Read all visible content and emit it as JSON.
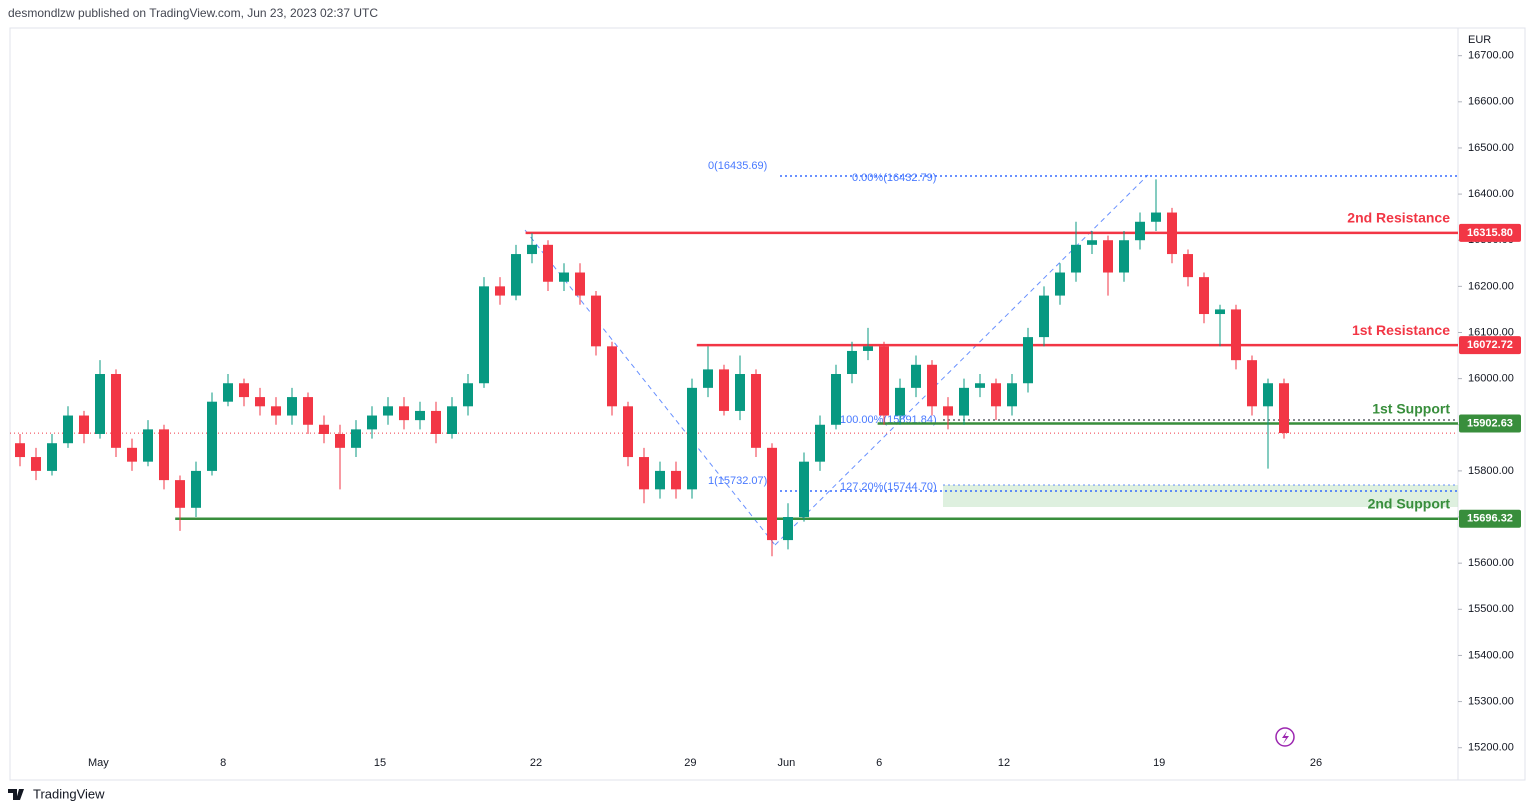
{
  "chart_data": {
    "type": "candlestick",
    "header": "desmondlzw published on TradingView.com, Jun 23, 2023 02:37 UTC",
    "currency": "EUR",
    "brand": "TradingView",
    "up_color": "#089981",
    "down_color": "#f23645",
    "open": [
      15860,
      15830,
      15800,
      15860,
      15920,
      15880,
      16010,
      15850,
      15820,
      15890,
      15780,
      15720,
      15800,
      15950,
      15990,
      15960,
      15940,
      15920,
      15960,
      15900,
      15880,
      15850,
      15890,
      15920,
      15940,
      15910,
      15930,
      15880,
      15940,
      15990,
      16200,
      16180,
      16270,
      16290,
      16210,
      16230,
      16180,
      16070,
      15940,
      15830,
      15760,
      15800,
      15760,
      15980,
      16020,
      15930,
      16010,
      15850,
      15650,
      15700,
      15820,
      15900,
      16010,
      16060,
      16070,
      15920,
      15980,
      16030,
      15940,
      15920,
      15980,
      15990,
      15940,
      15990,
      16090,
      16180,
      16230,
      16290,
      16300,
      16230,
      16300,
      16340,
      16360,
      16270,
      16220,
      16140,
      16150,
      16040,
      15940,
      15990
    ],
    "high": [
      15880,
      15850,
      15880,
      15940,
      15930,
      16040,
      16020,
      15870,
      15910,
      15900,
      15790,
      15820,
      15970,
      16010,
      16000,
      15980,
      15960,
      15980,
      15970,
      15920,
      15900,
      15910,
      15940,
      15960,
      15960,
      15950,
      15950,
      15960,
      16010,
      16220,
      16220,
      16290,
      16315,
      16300,
      16250,
      16250,
      16190,
      16080,
      15950,
      15850,
      15820,
      15820,
      16000,
      16070,
      16030,
      16050,
      16020,
      15860,
      15730,
      15840,
      15920,
      16030,
      16080,
      16110,
      16080,
      16000,
      16050,
      16040,
      15960,
      16000,
      16010,
      16000,
      16010,
      16110,
      16200,
      16250,
      16340,
      16320,
      16310,
      16320,
      16360,
      16432,
      16370,
      16280,
      16230,
      16160,
      16160,
      16050,
      16000,
      16000
    ],
    "low": [
      15810,
      15780,
      15790,
      15850,
      15860,
      15870,
      15830,
      15800,
      15810,
      15760,
      15670,
      15700,
      15790,
      15940,
      15940,
      15920,
      15900,
      15900,
      15880,
      15860,
      15760,
      15830,
      15870,
      15900,
      15890,
      15890,
      15860,
      15870,
      15920,
      15980,
      16160,
      16170,
      16250,
      16190,
      16190,
      16160,
      16050,
      15920,
      15810,
      15730,
      15740,
      15740,
      15740,
      15960,
      15920,
      15910,
      15830,
      15615,
      15630,
      15690,
      15800,
      15890,
      15990,
      16040,
      15900,
      15900,
      15960,
      15920,
      15890,
      15900,
      15960,
      15910,
      15920,
      15970,
      16070,
      16160,
      16210,
      16270,
      16180,
      16210,
      16280,
      16320,
      16250,
      16200,
      16120,
      16070,
      16020,
      15920,
      15805,
      15870
    ],
    "close": [
      15830,
      15800,
      15860,
      15920,
      15880,
      16010,
      15850,
      15820,
      15890,
      15780,
      15720,
      15800,
      15950,
      15990,
      15960,
      15940,
      15920,
      15960,
      15900,
      15880,
      15850,
      15890,
      15920,
      15940,
      15910,
      15930,
      15880,
      15940,
      15990,
      16200,
      16180,
      16270,
      16290,
      16210,
      16230,
      16180,
      16070,
      15940,
      15830,
      15760,
      15800,
      15760,
      15980,
      16020,
      15930,
      16010,
      15850,
      15650,
      15700,
      15820,
      15900,
      16010,
      16060,
      16070,
      15920,
      15980,
      16030,
      15940,
      15920,
      15980,
      15990,
      15940,
      15990,
      16090,
      16180,
      16230,
      16290,
      16300,
      16230,
      16300,
      16340,
      16360,
      16270,
      16220,
      16140,
      16150,
      16040,
      15940,
      15990,
      15882
    ],
    "xticks": [
      {
        "value": 4.9,
        "label": "May"
      },
      {
        "value": 12.7,
        "label": "8"
      },
      {
        "value": 22.5,
        "label": "15"
      },
      {
        "value": 32.25,
        "label": "22"
      },
      {
        "value": 41.9,
        "label": "29"
      },
      {
        "value": 47.9,
        "label": "Jun"
      },
      {
        "value": 53.7,
        "label": "6"
      },
      {
        "value": 61.5,
        "label": "12"
      },
      {
        "value": 71.2,
        "label": "19"
      },
      {
        "value": 81,
        "label": "26"
      }
    ],
    "ylim": [
      15130,
      16760
    ],
    "yticks": [
      {
        "value": 15200,
        "label": "15200.00"
      },
      {
        "value": 15300,
        "label": "15300.00"
      },
      {
        "value": 15400,
        "label": "15400.00"
      },
      {
        "value": 15500,
        "label": "15500.00"
      },
      {
        "value": 15600,
        "label": "15600.00"
      },
      {
        "value": 15700,
        "label": "15700.00"
      },
      {
        "value": 15800,
        "label": "15800.00"
      },
      {
        "value": 15900,
        "label": "15900.00"
      },
      {
        "value": 16000,
        "label": "16000.00"
      },
      {
        "value": 16100,
        "label": "16100.00"
      },
      {
        "value": 16200,
        "label": "16200.00"
      },
      {
        "value": 16300,
        "label": "16300.00"
      },
      {
        "value": 16400,
        "label": "16400.00"
      },
      {
        "value": 16500,
        "label": "16500.00"
      },
      {
        "value": 16600,
        "label": "16600.00"
      },
      {
        "value": 16700,
        "label": "16700.00"
      }
    ],
    "levels": [
      {
        "name": "2nd Resistance",
        "value": {
          "value": 16315.8,
          "label": "16315.80"
        },
        "color": "#f23645"
      },
      {
        "name": "1st Resistance",
        "value": 16072.72,
        "color": "#f23645"
      },
      {
        "name": "1st Support",
        "value": 15902.63,
        "color": "#388e3c"
      },
      {
        "name": "2nd Support",
        "value": 15696.32,
        "color": "#388e3c"
      }
    ],
    "annotations": [
      "0(16435.69)",
      "0.00%(16432.79)",
      "100.00%(15891.84)",
      "1(15732.07)",
      "127.20%(15744.70)"
    ]
  }
}
